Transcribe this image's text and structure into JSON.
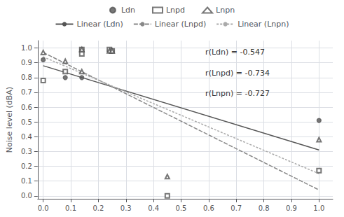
{
  "chart_data": {
    "type": "scatter",
    "ylabel": "Noise level (dBA)",
    "xlim": [
      -0.02,
      1.05
    ],
    "ylim": [
      -0.02,
      1.05
    ],
    "xticks": [
      {
        "value": 0.0,
        "label": "0.0"
      },
      0.1,
      0.2,
      0.3,
      0.4,
      0.5,
      0.6,
      0.7,
      0.8,
      0.9,
      {
        "value": 1.0,
        "label": "1.0"
      }
    ],
    "yticks": [
      {
        "value": 0.0,
        "label": "0.0"
      },
      0.1,
      0.2,
      0.3,
      0.4,
      0.5,
      0.6,
      0.7,
      0.8,
      0.9,
      {
        "value": 1.0,
        "label": "1.0"
      }
    ],
    "grid": true,
    "legend": "top",
    "annotations": [
      "r(Ldn) = -0.547",
      "r(Lnpd) = -0.734",
      "r(Lnpn) = -0.727"
    ],
    "series": [
      {
        "name": "Ldn",
        "type": "scatter",
        "marker": "circle",
        "color": "#555555",
        "x": [
          0.0,
          0.08,
          0.14,
          0.14,
          0.24,
          0.25,
          1.0
        ],
        "values": [
          0.92,
          0.8,
          0.8,
          0.99,
          0.98,
          0.98,
          0.51
        ]
      },
      {
        "name": "Lnpd",
        "type": "scatter",
        "marker": "open_square",
        "color": "#555555",
        "x": [
          0.0,
          0.08,
          0.14,
          0.14,
          0.24,
          0.25,
          0.45,
          1.0
        ],
        "values": [
          0.78,
          0.84,
          0.96,
          0.99,
          0.99,
          0.98,
          0.0,
          0.17
        ]
      },
      {
        "name": "Lnpn",
        "type": "scatter",
        "marker": "open_triangle",
        "color": "#555555",
        "x": [
          0.0,
          0.08,
          0.14,
          0.14,
          0.24,
          0.25,
          0.45,
          1.0
        ],
        "values": [
          0.97,
          0.91,
          0.84,
          0.99,
          0.98,
          0.98,
          0.13,
          0.38
        ]
      },
      {
        "name": "Linear (Ldn)",
        "type": "line",
        "line_style": "solid",
        "color": "#555555",
        "x": [
          0.0,
          1.0
        ],
        "values": [
          0.88,
          0.31
        ]
      },
      {
        "name": "Linear (Lnpd)",
        "type": "line",
        "line_style": "long_dash",
        "color": "#888888",
        "x": [
          0.0,
          1.0
        ],
        "values": [
          0.97,
          0.04
        ]
      },
      {
        "name": "Linear (Lnpn)",
        "type": "line",
        "line_style": "short_dash",
        "color": "#aaaaaa",
        "x": [
          0.0,
          1.0
        ],
        "values": [
          0.94,
          0.15
        ]
      }
    ]
  }
}
